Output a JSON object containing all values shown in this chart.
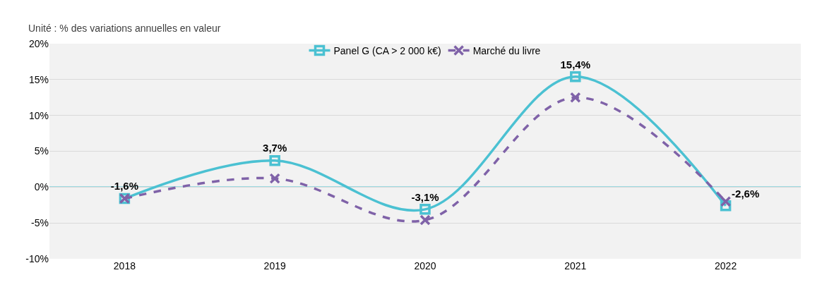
{
  "chart_data": {
    "type": "line",
    "subtitle": "Unité : % des variations annuelles en valeur",
    "categories": [
      "2018",
      "2019",
      "2020",
      "2021",
      "2022"
    ],
    "series": [
      {
        "name": "Panel G (CA > 2 000 k€)",
        "color": "#4bc1d2",
        "values": [
          -1.6,
          3.7,
          -3.1,
          15.4,
          -2.6
        ],
        "value_labels": [
          "-1,6%",
          "3,7%",
          "-3,1%",
          "15,4%",
          "-2,6%"
        ],
        "marker": "square",
        "line_style": "solid"
      },
      {
        "name": "Marché du livre",
        "color": "#7f62a8",
        "values": [
          -1.6,
          1.2,
          -4.6,
          12.5,
          -2.0
        ],
        "marker": "cross",
        "line_style": "dashed"
      }
    ],
    "ylim": [
      -10,
      20
    ],
    "yticks": [
      {
        "value": -10,
        "label": "-10%"
      },
      {
        "value": -5,
        "label": "-5%"
      },
      {
        "value": 0,
        "label": "0%"
      },
      {
        "value": 5,
        "label": "5%"
      },
      {
        "value": 10,
        "label": "10%"
      },
      {
        "value": 15,
        "label": "15%"
      },
      {
        "value": 20,
        "label": "20%"
      }
    ],
    "ref_lines": [
      {
        "axis": "y",
        "value": 0,
        "color": "#4bc1d2"
      }
    ],
    "grid": "y",
    "legend": "top"
  }
}
